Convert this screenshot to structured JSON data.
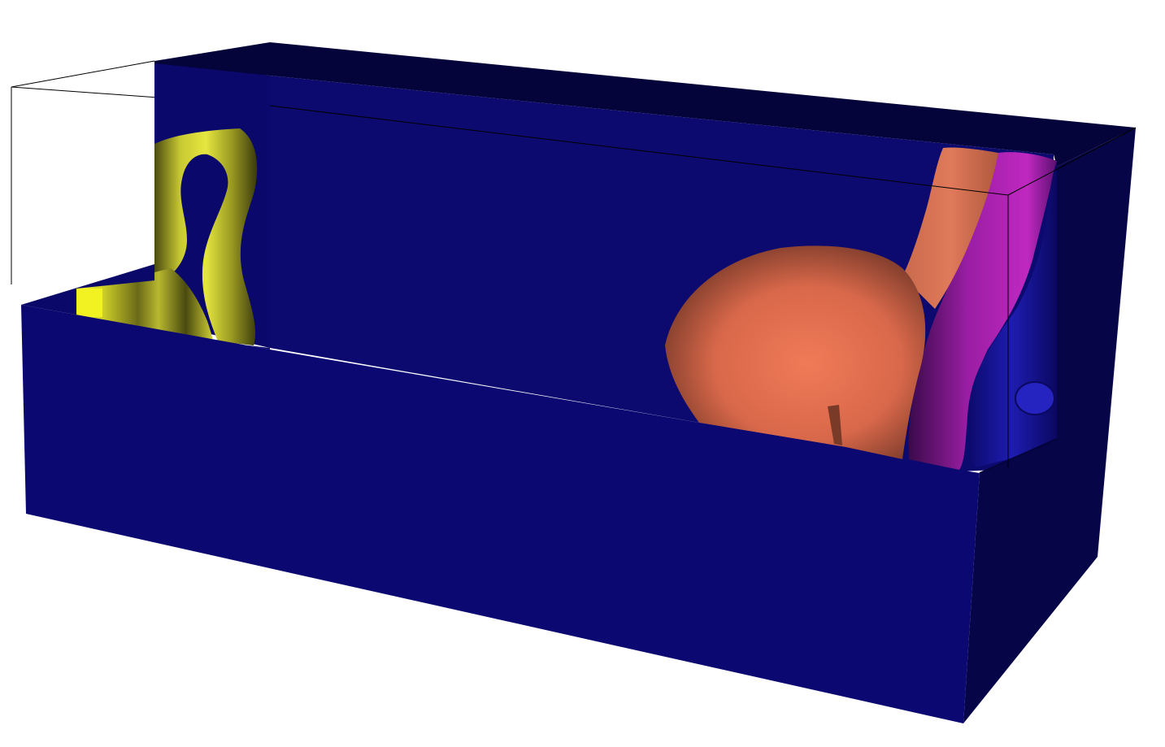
{
  "scene": {
    "background": "#ffffff",
    "colors": {
      "box_front": "#0b0872",
      "box_side": "#060547",
      "box_top": "#04033a",
      "box_back": "#0c0a6e",
      "outline": "#000000",
      "yellow_blob": "#d9d936",
      "orange_blob": "#ea7455",
      "magenta_blob": "#a020a8",
      "blue_blob": "#1a18a0"
    },
    "objects": [
      "bounding-box-outline",
      "clipped-volume-box",
      "yellow-isosurface",
      "orange-isosurface",
      "magenta-isosurface",
      "blue-isosurface"
    ]
  }
}
